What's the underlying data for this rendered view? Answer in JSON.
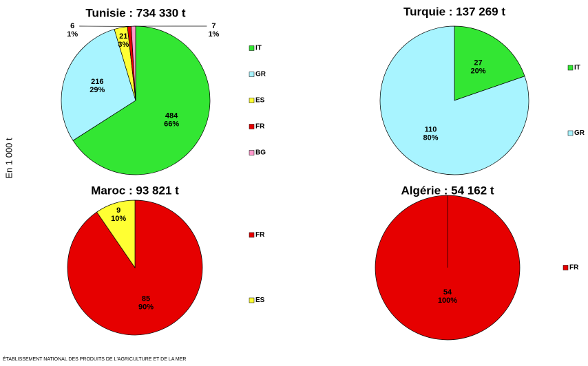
{
  "axis_label": "En 1 000 t",
  "footer": "ÉTABLISSEMENT NATIONAL DES PRODUITS DE L'AGRICULTURE ET DE LA MER",
  "chart_data": [
    {
      "type": "pie",
      "title": "Tunisie : 734 330 t",
      "categories": [
        "IT",
        "GR",
        "ES",
        "FR",
        "BG"
      ],
      "values": [
        484,
        216,
        21,
        6,
        7
      ],
      "percent_labels": [
        "66%",
        "29%",
        "3%",
        "1%",
        "1%"
      ],
      "colors": [
        "#33e633",
        "#a8f4ff",
        "#ffff33",
        "#e60000",
        "#ff99cc"
      ]
    },
    {
      "type": "pie",
      "title": "Turquie : 137 269 t",
      "categories": [
        "IT",
        "GR"
      ],
      "values": [
        27,
        110
      ],
      "percent_labels": [
        "20%",
        "80%"
      ],
      "colors": [
        "#33e633",
        "#a8f4ff"
      ]
    },
    {
      "type": "pie",
      "title": "Maroc : 93 821 t",
      "categories": [
        "FR",
        "ES"
      ],
      "values": [
        85,
        9
      ],
      "percent_labels": [
        "90%",
        "10%"
      ],
      "colors": [
        "#e60000",
        "#ffff33"
      ]
    },
    {
      "type": "pie",
      "title": "Algérie : 54 162 t",
      "categories": [
        "FR"
      ],
      "values": [
        54
      ],
      "percent_labels": [
        "100%"
      ],
      "colors": [
        "#e60000"
      ]
    }
  ]
}
